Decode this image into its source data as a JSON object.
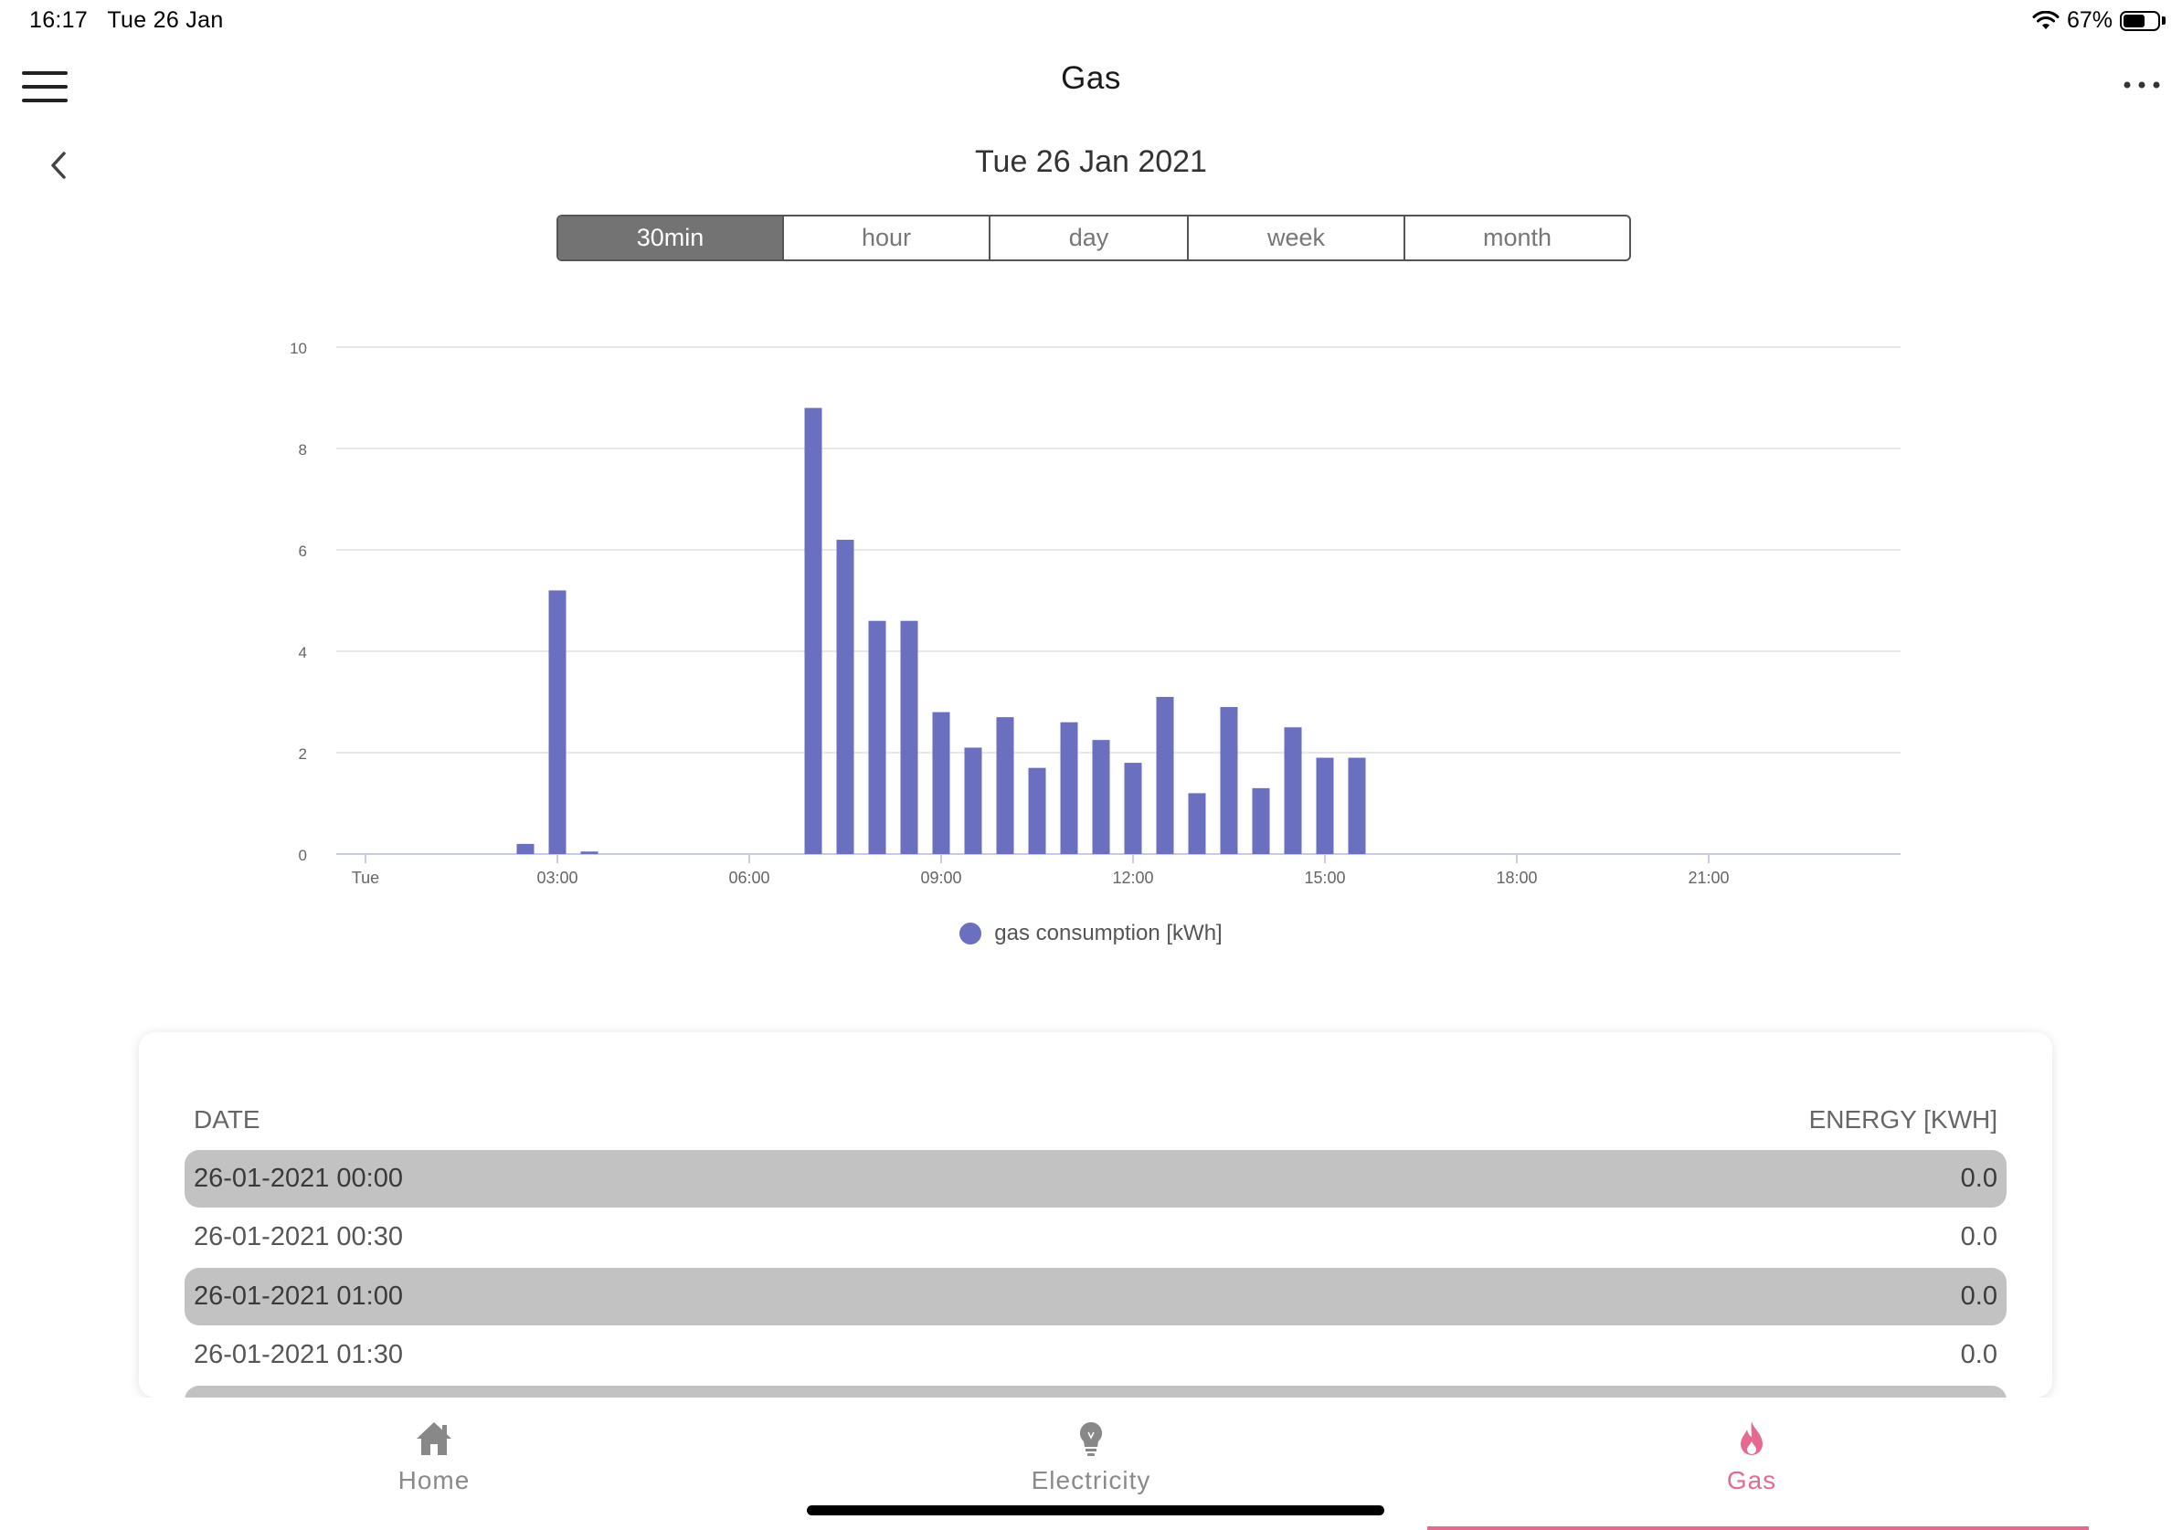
{
  "status_bar": {
    "time": "16:17",
    "date": "Tue 26 Jan",
    "battery": "67%",
    "battery_level": 0.67
  },
  "header": {
    "title": "Gas"
  },
  "date_nav": {
    "date": "Tue 26 Jan 2021"
  },
  "segments": [
    {
      "label": "30min",
      "active": true
    },
    {
      "label": "hour",
      "active": false
    },
    {
      "label": "day",
      "active": false
    },
    {
      "label": "week",
      "active": false
    },
    {
      "label": "month",
      "active": false
    }
  ],
  "chart_data": {
    "type": "bar",
    "legend": "gas consumption [kWh]",
    "series_color": "#6a6fc0",
    "ylim": [
      0,
      10
    ],
    "yticks": [
      "0",
      "2",
      "4",
      "6",
      "8",
      "10"
    ],
    "xticks": [
      "Tue",
      "03:00",
      "06:00",
      "09:00",
      "12:00",
      "15:00",
      "18:00",
      "21:00"
    ],
    "x_start_hour": 0,
    "x_end_hour": 24,
    "x": [
      "02:30",
      "03:00",
      "03:30",
      "07:00",
      "07:30",
      "08:00",
      "08:30",
      "09:00",
      "09:30",
      "10:00",
      "10:30",
      "11:00",
      "11:30",
      "12:00",
      "12:30",
      "13:00",
      "13:30",
      "14:00",
      "14:30",
      "15:00",
      "15:30"
    ],
    "values": [
      0.2,
      5.2,
      0.05,
      8.8,
      6.2,
      4.6,
      4.6,
      2.8,
      2.1,
      2.7,
      1.7,
      2.6,
      2.25,
      1.8,
      3.1,
      1.2,
      2.9,
      1.3,
      2.5,
      1.9,
      1.9
    ],
    "grid": true
  },
  "table": {
    "col_date": "DATE",
    "col_energy": "ENERGY [KWH]",
    "rows": [
      {
        "date": "26-01-2021 00:00",
        "energy": "0.0"
      },
      {
        "date": "26-01-2021 00:30",
        "energy": "0.0"
      },
      {
        "date": "26-01-2021 01:00",
        "energy": "0.0"
      },
      {
        "date": "26-01-2021 01:30",
        "energy": "0.0"
      }
    ]
  },
  "tabs": [
    {
      "label": "Home",
      "icon": "home-icon"
    },
    {
      "label": "Electricity",
      "icon": "lightbulb-icon"
    },
    {
      "label": "Gas",
      "icon": "flame-icon",
      "active": true
    }
  ],
  "colors": {
    "accent": "#e66a8e",
    "bar": "#6a6fc0",
    "segment_active": "#737373"
  }
}
